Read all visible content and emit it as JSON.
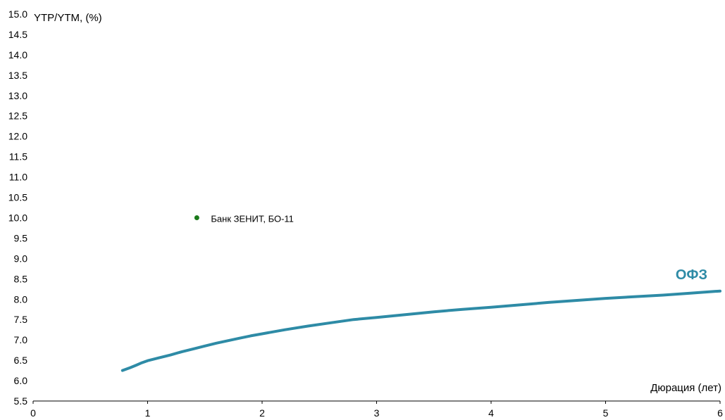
{
  "colors": {
    "ofz_line": "#2E8BA6",
    "bond_point": "#1B7A1B",
    "axis": "#000000"
  },
  "chart_data": {
    "type": "scatter",
    "title": "",
    "ylabel": "YTP/YTM, (%)",
    "xlabel": "Дюрация (лет)",
    "xlim": [
      0,
      6
    ],
    "ylim": [
      5.5,
      15.0
    ],
    "x_ticks": [
      "0",
      "1",
      "2",
      "3",
      "4",
      "5",
      "6"
    ],
    "y_ticks": [
      "5.5",
      "6.0",
      "6.5",
      "7.0",
      "7.5",
      "8.0",
      "8.5",
      "9.0",
      "9.5",
      "10.0",
      "10.5",
      "11.0",
      "11.5",
      "12.0",
      "12.5",
      "13.0",
      "13.5",
      "14.0",
      "14.5",
      "15.0"
    ],
    "grid": false,
    "series": [
      {
        "name": "ОФЗ",
        "kind": "line",
        "color": "#2E8BA6",
        "points": [
          [
            0.78,
            6.25
          ],
          [
            0.85,
            6.32
          ],
          [
            0.9,
            6.38
          ],
          [
            0.95,
            6.44
          ],
          [
            1.0,
            6.49
          ],
          [
            1.1,
            6.56
          ],
          [
            1.2,
            6.63
          ],
          [
            1.3,
            6.71
          ],
          [
            1.4,
            6.78
          ],
          [
            1.5,
            6.85
          ],
          [
            1.6,
            6.92
          ],
          [
            1.7,
            6.98
          ],
          [
            1.8,
            7.04
          ],
          [
            1.9,
            7.1
          ],
          [
            2.0,
            7.15
          ],
          [
            2.2,
            7.25
          ],
          [
            2.4,
            7.34
          ],
          [
            2.6,
            7.42
          ],
          [
            2.8,
            7.5
          ],
          [
            3.0,
            7.55
          ],
          [
            3.25,
            7.62
          ],
          [
            3.5,
            7.69
          ],
          [
            3.75,
            7.75
          ],
          [
            4.0,
            7.8
          ],
          [
            4.25,
            7.86
          ],
          [
            4.5,
            7.92
          ],
          [
            4.75,
            7.97
          ],
          [
            5.0,
            8.02
          ],
          [
            5.25,
            8.06
          ],
          [
            5.5,
            8.1
          ],
          [
            5.75,
            8.15
          ],
          [
            6.0,
            8.2
          ]
        ]
      },
      {
        "name": "Банк ЗЕНИТ, БО-11",
        "kind": "point",
        "color": "#1B7A1B",
        "points": [
          [
            1.43,
            10.0
          ]
        ]
      }
    ]
  }
}
